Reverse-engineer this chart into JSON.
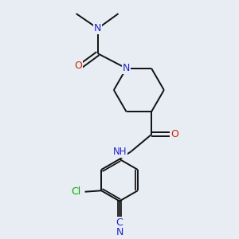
{
  "background_color": "#e8edf4",
  "atom_colors": {
    "N": "#2222cc",
    "O": "#cc2200",
    "C": "#111111",
    "Cl": "#00aa00"
  },
  "bond_color": "#111111",
  "bond_width": 1.4
}
